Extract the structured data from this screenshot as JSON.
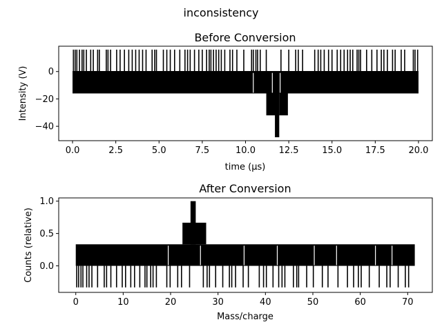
{
  "suptitle": "inconsistency",
  "chart_data": [
    {
      "type": "line",
      "title": "Before Conversion",
      "xlabel": "time (μs)",
      "ylabel": "Intensity (V)",
      "xlim": [
        -0.8,
        20.8
      ],
      "ylim": [
        -50.5,
        18.5
      ],
      "xticks": [
        0.0,
        2.5,
        5.0,
        7.5,
        10.0,
        12.5,
        15.0,
        17.5,
        20.0
      ],
      "xticklabels": [
        "0.0",
        "2.5",
        "5.0",
        "7.5",
        "10.0",
        "12.5",
        "15.0",
        "17.5",
        "20.0"
      ],
      "yticks": [
        0,
        -20,
        -40
      ],
      "yticklabels": [
        "0",
        "−20",
        "−40"
      ],
      "grid": false,
      "series": [
        {
          "color": "#000000",
          "x_range": [
            0.0,
            20.0
          ],
          "levels": [
            16,
            0,
            -16
          ],
          "dips": [
            {
              "x": [
                11.2,
                11.75
              ],
              "min": -32
            },
            {
              "x": [
                11.7,
                11.95
              ],
              "min": -48
            },
            {
              "x": [
                11.95,
                12.45
              ],
              "min": -32
            }
          ],
          "spikes_to_16": [
            0.05,
            0.15,
            0.25,
            0.4,
            0.55,
            0.65,
            0.8,
            1.05,
            1.2,
            1.45,
            1.55,
            1.95,
            2.05,
            2.2,
            2.55,
            2.75,
            3.0,
            3.25,
            3.45,
            3.65,
            3.85,
            4.05,
            4.25,
            4.6,
            4.75,
            4.85,
            5.25,
            5.45,
            5.65,
            5.9,
            6.2,
            6.5,
            6.65,
            6.8,
            7.05,
            7.3,
            7.5,
            7.75,
            7.9,
            8.0,
            8.15,
            8.3,
            8.45,
            8.6,
            8.8,
            9.1,
            9.25,
            9.5,
            9.9,
            10.35,
            10.45,
            10.6,
            10.7,
            10.85,
            11.2,
            12.05,
            12.5,
            12.9,
            13.05,
            13.3,
            14.0,
            14.2,
            14.35,
            14.55,
            14.8,
            15.0,
            15.3,
            15.5,
            15.7,
            15.9,
            16.05,
            16.2,
            16.45,
            16.55,
            16.65,
            17.0,
            17.3,
            17.6,
            17.85,
            18.0,
            18.2,
            18.5,
            18.65,
            19.0,
            19.2,
            19.7,
            19.8,
            19.95
          ]
        }
      ]
    },
    {
      "type": "line",
      "title": "After Conversion",
      "xlabel": "Mass/charge",
      "ylabel": "Counts (relative)",
      "xlim": [
        -3.6,
        75.2
      ],
      "ylim": [
        -0.41,
        1.05
      ],
      "xticks": [
        0,
        10,
        20,
        30,
        40,
        50,
        60,
        70
      ],
      "xticklabels": [
        "0",
        "10",
        "20",
        "30",
        "40",
        "50",
        "60",
        "70"
      ],
      "yticks": [
        1.0,
        0.5,
        0.0
      ],
      "yticklabels": [
        "1.0",
        "0.5",
        "0.0"
      ],
      "grid": false,
      "series": [
        {
          "color": "#000000",
          "x_range": [
            0.0,
            71.5
          ],
          "levels": [
            0.333,
            0.0,
            -0.333
          ],
          "peaks": [
            {
              "x": [
                22.5,
                27.5
              ],
              "max": 0.667
            },
            {
              "x": [
                24.2,
                25.3
              ],
              "max": 1.0
            }
          ],
          "spikes_to_-0.333": [
            0.2,
            0.6,
            1.1,
            1.5,
            2.3,
            2.8,
            3.4,
            4.6,
            6.0,
            6.5,
            7.4,
            8.6,
            9.8,
            10.5,
            11.6,
            12.4,
            13.5,
            14.6,
            15.0,
            15.8,
            16.3,
            17.0,
            19.2,
            19.9,
            21.5,
            22.3,
            24.0,
            26.9,
            27.7,
            28.2,
            29.5,
            31.0,
            32.4,
            32.9,
            33.7,
            35.3,
            36.4,
            38.7,
            39.6,
            40.2,
            41.6,
            42.8,
            43.5,
            44.1,
            45.9,
            46.6,
            47.0,
            48.7,
            50.1,
            52.0,
            53.2,
            55.3,
            57.3,
            58.6,
            59.6,
            60.2,
            61.9,
            64.0,
            65.6,
            66.3,
            68.0,
            69.5,
            70.2
          ]
        }
      ]
    }
  ]
}
